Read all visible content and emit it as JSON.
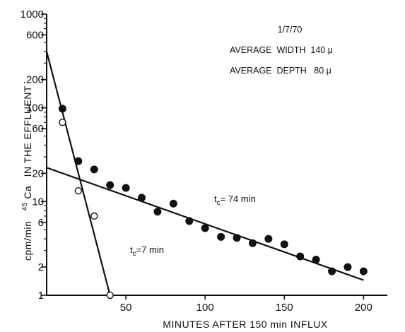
{
  "chart_data": {
    "type": "scatter",
    "title": "",
    "xlabel": "MINUTES AFTER 150 min INFLUX",
    "ylabel": "cpm/min  45Ca IN THE EFFLUENT",
    "ylabel_parts": {
      "pre": "cpm/min",
      "superscript": "45",
      "element": "Ca",
      "post": "IN THE EFFLUENT"
    },
    "xlim": [
      0,
      215
    ],
    "ylim": [
      1,
      1000
    ],
    "yscale": "log",
    "x_ticks": [
      50,
      100,
      150,
      200
    ],
    "x_tick_labels": [
      "50",
      "100",
      "150",
      "200"
    ],
    "y_ticks": [
      1,
      2,
      6,
      10,
      20,
      60,
      100,
      200,
      600,
      1000
    ],
    "y_tick_labels": [
      "1",
      "2",
      "6",
      "10",
      "20",
      "60",
      "100",
      ".200",
      "600",
      "1000"
    ],
    "y_minor_ticks": [
      3,
      4,
      5,
      7,
      8,
      9,
      30,
      40,
      50,
      70,
      80,
      90,
      300,
      400,
      500,
      700,
      800,
      900
    ],
    "grid": false,
    "annotations": {
      "date": "1/7/70",
      "width_line": "AVERAGE  WIDTH  140 μ",
      "depth_line": "AVERAGE  DEPTH   80 μ",
      "fit_slow_label": {
        "pre": "t",
        "sub": "c",
        "post": "= 74 min"
      },
      "fit_fast_label": {
        "pre": "t",
        "sub": "c",
        "post": "=7 min"
      }
    },
    "series": [
      {
        "marker": "filled-circle",
        "x": [
          10,
          20,
          30,
          40,
          50,
          60,
          70,
          80,
          90,
          100,
          110,
          120,
          130,
          140,
          150,
          160,
          170,
          180,
          190,
          200
        ],
        "y": [
          98,
          27,
          22,
          15,
          14,
          11,
          7.8,
          9.5,
          6.2,
          5.2,
          4.2,
          4.1,
          3.6,
          4,
          3.5,
          2.6,
          2.4,
          1.8,
          2,
          1.8
        ]
      },
      {
        "marker": "open-circle",
        "x": [
          10,
          20,
          30,
          40
        ],
        "y": [
          70,
          13,
          7,
          1
        ]
      }
    ],
    "fit_lines": [
      {
        "x": [
          0,
          200
        ],
        "y": [
          23,
          1.45
        ]
      },
      {
        "x": [
          0,
          40
        ],
        "y": [
          400,
          1
        ]
      }
    ]
  }
}
